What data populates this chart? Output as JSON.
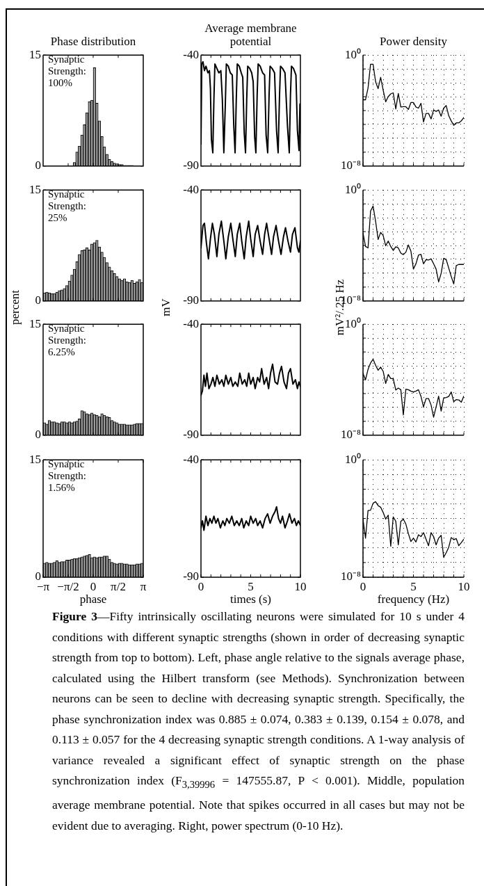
{
  "chart_data": [
    {
      "type": "histogram",
      "title": "Phase distribution",
      "annotations": [
        "Synaptic Strength: 100%"
      ],
      "bins": [
        -3.1416,
        -2.9845,
        -2.8274,
        -2.6704,
        -2.5133,
        -2.3562,
        -2.1991,
        -2.042,
        -1.885,
        -1.7279,
        -1.5708,
        -1.4137,
        -1.2566,
        -1.0996,
        -0.9425,
        -0.7854,
        -0.6283,
        -0.4712,
        -0.3142,
        -0.1571,
        0,
        0.1571,
        0.3142,
        0.4712,
        0.6283,
        0.7854,
        0.9425,
        1.0996,
        1.2566,
        1.4137,
        1.5708,
        1.7279,
        1.885,
        2.042,
        2.1991,
        2.3562,
        2.5133,
        2.6704,
        2.8274,
        2.9845,
        3.1416
      ],
      "values": [
        0,
        0,
        0,
        0,
        0,
        0,
        0,
        0,
        0,
        0,
        0,
        0,
        0.5,
        1.9,
        2.7,
        4.2,
        5.6,
        7.2,
        8.7,
        8.9,
        13.3,
        8.5,
        6.1,
        4.0,
        2.6,
        1.6,
        0.9,
        0.6,
        0.4,
        0.3,
        0.2,
        0.2,
        0.1,
        0.1,
        0.1,
        0.1,
        0,
        0,
        0,
        0
      ],
      "color": "#a0a0a0",
      "xlim": [
        -3.1416,
        3.1416
      ],
      "xticks": [
        {
          "value": -1.5708,
          "label": null
        },
        {
          "value": 0,
          "label": null
        },
        {
          "value": 1.5708,
          "label": null
        }
      ],
      "ylim": [
        0,
        15
      ],
      "yticks": [
        0,
        15
      ],
      "tick_labels": "y"
    },
    {
      "type": "line",
      "title": "Average membrane potential",
      "x": [
        0,
        0.08,
        0.2,
        0.35,
        0.5,
        0.7,
        0.85,
        0.95,
        1.05,
        1.19,
        1.3,
        1.4,
        1.6,
        1.8,
        2.0,
        2.15,
        2.3,
        2.45,
        2.55,
        2.75,
        2.95,
        3.15,
        3.3,
        3.43,
        3.55,
        3.65,
        3.85,
        4.05,
        4.2,
        4.35,
        4.48,
        4.6,
        4.7,
        4.9,
        5.1,
        5.25,
        5.4,
        5.52,
        5.65,
        5.75,
        5.95,
        6.2,
        6.4,
        6.55,
        6.71,
        6.85,
        6.95,
        7.15,
        7.4,
        7.6,
        7.76,
        7.9,
        8.0,
        8.2,
        8.45,
        8.7,
        8.88,
        9.0,
        9.1,
        9.3,
        9.55,
        9.7,
        9.86,
        9.95,
        10
      ],
      "values": [
        -80,
        -44,
        -43,
        -47,
        -45,
        -48,
        -47,
        -55,
        -78,
        -84,
        -60,
        -44,
        -46,
        -48,
        -47,
        -60,
        -84,
        -62,
        -44,
        -45,
        -48,
        -49,
        -72,
        -84,
        -60,
        -44,
        -45,
        -48,
        -50,
        -75,
        -84,
        -60,
        -45,
        -46,
        -48,
        -52,
        -77,
        -84,
        -58,
        -44,
        -45,
        -48,
        -49,
        -76,
        -84,
        -58,
        -45,
        -46,
        -48,
        -74,
        -84,
        -58,
        -45,
        -46,
        -48,
        -72,
        -84,
        -58,
        -45,
        -46,
        -49,
        -74,
        -83,
        -62,
        -75
      ],
      "color": "#000000",
      "xlim": [
        0,
        10
      ],
      "xticks": [
        {
          "value": 1,
          "label": null
        },
        {
          "value": 2,
          "label": null
        },
        {
          "value": 3,
          "label": null
        },
        {
          "value": 4,
          "label": null
        },
        {
          "value": 5,
          "label": null
        },
        {
          "value": 6,
          "label": null
        },
        {
          "value": 7,
          "label": null
        },
        {
          "value": 8,
          "label": null
        },
        {
          "value": 9,
          "label": null
        }
      ],
      "ylim": [
        -90,
        -40
      ],
      "yticks": [
        -90,
        -40
      ],
      "tick_labels": "y"
    },
    {
      "type": "line",
      "title": "Power density",
      "x": [
        0,
        0.25,
        0.5,
        0.75,
        1,
        1.25,
        1.5,
        1.75,
        2,
        2.25,
        2.5,
        2.75,
        3,
        3.25,
        3.5,
        3.75,
        4,
        4.25,
        4.5,
        4.75,
        5,
        5.25,
        5.5,
        5.75,
        6,
        6.25,
        6.5,
        6.75,
        7,
        7.25,
        7.5,
        7.75,
        8,
        8.25,
        8.5,
        8.75,
        9,
        9.25,
        9.5,
        9.75,
        10
      ],
      "values": [
        0.0006,
        0.0006,
        0.0042,
        0.22,
        0.22,
        0.012,
        0.0038,
        0.025,
        0.003,
        0.00043,
        0.001,
        0.0016,
        0.0019,
        0.00013,
        0.0017,
        0.00018,
        0.00019,
        0.00019,
        0.00012,
        0.00038,
        0.00038,
        0.00018,
        0.00015,
        0.00033,
        1.5e-05,
        6.2e-05,
        6.2e-05,
        2.5e-05,
        0.00011,
        8.7e-05,
        0.00011,
        3.9e-05,
        0.00015,
        0.00023,
        4.3e-05,
        1.8e-05,
        8.7e-06,
        1.3e-05,
        1.3e-05,
        1.8e-05,
        3.2e-05
      ],
      "color": "#000000",
      "xlim": [
        0,
        10
      ],
      "xticks": [
        {
          "value": 0,
          "label": null
        },
        {
          "value": 1,
          "label": null
        },
        {
          "value": 2,
          "label": null
        },
        {
          "value": 3,
          "label": null
        },
        {
          "value": 4,
          "label": null
        },
        {
          "value": 5,
          "label": null
        },
        {
          "value": 6,
          "label": null
        },
        {
          "value": 7,
          "label": null
        },
        {
          "value": 8,
          "label": null
        },
        {
          "value": 9,
          "label": null
        },
        {
          "value": 10,
          "label": null
        }
      ],
      "ylim": [
        1e-08,
        1
      ],
      "yticks": [
        {
          "value": 1e-08,
          "label": "10⁻⁸"
        },
        {
          "value": 1e-07,
          "label": null
        },
        {
          "value": 1e-06,
          "label": null
        },
        {
          "value": 1e-05,
          "label": null
        },
        {
          "value": 0.0001,
          "label": null
        },
        {
          "value": 0.001,
          "label": null
        },
        {
          "value": 0.01,
          "label": null
        },
        {
          "value": 0.1,
          "label": null
        },
        {
          "value": 1,
          "label": "10⁰"
        }
      ],
      "log": true,
      "grid": true,
      "tick_labels": "y"
    },
    {
      "type": "histogram",
      "ylabel": "percent",
      "annotations": [
        "Synaptic Strength: 25%"
      ],
      "bins": [
        -3.1416,
        -2.9845,
        -2.8274,
        -2.6704,
        -2.5133,
        -2.3562,
        -2.1991,
        -2.042,
        -1.885,
        -1.7279,
        -1.5708,
        -1.4137,
        -1.2566,
        -1.0996,
        -0.9425,
        -0.7854,
        -0.6283,
        -0.4712,
        -0.3142,
        -0.1571,
        0,
        0.1571,
        0.3142,
        0.4712,
        0.6283,
        0.7854,
        0.9425,
        1.0996,
        1.2566,
        1.4137,
        1.5708,
        1.7279,
        1.885,
        2.042,
        2.1991,
        2.3562,
        2.5133,
        2.6704,
        2.8274,
        2.9845,
        3.1416
      ],
      "values": [
        1.1,
        1.2,
        1.1,
        1.0,
        1.0,
        1.2,
        1.4,
        1.5,
        1.7,
        2.1,
        2.7,
        3.5,
        4.3,
        5.3,
        6.3,
        6.8,
        6.9,
        7.2,
        6.9,
        7.7,
        7.9,
        8.2,
        7.3,
        6.6,
        5.9,
        5.2,
        4.6,
        4.1,
        3.7,
        3.3,
        3.0,
        2.8,
        3.0,
        2.6,
        2.5,
        2.8,
        2.4,
        2.6,
        2.9,
        2.5
      ],
      "color": "#a0a0a0",
      "xlim": [
        -3.1416,
        3.1416
      ],
      "xticks": [
        {
          "value": -1.5708,
          "label": null
        },
        {
          "value": 0,
          "label": null
        },
        {
          "value": 1.5708,
          "label": null
        }
      ],
      "ylim": [
        0,
        15
      ],
      "yticks": [
        0,
        15
      ],
      "tick_labels": "y"
    },
    {
      "type": "line",
      "ylabel": "mV",
      "x": [
        0,
        0.2,
        0.35,
        0.55,
        0.75,
        0.95,
        1.15,
        1.35,
        1.6,
        1.8,
        2.05,
        2.3,
        2.5,
        2.75,
        3.0,
        3.2,
        3.45,
        3.65,
        3.9,
        4.1,
        4.35,
        4.55,
        4.8,
        5.0,
        5.25,
        5.45,
        5.7,
        5.95,
        6.2,
        6.4,
        6.6,
        6.85,
        7.1,
        7.3,
        7.55,
        7.8,
        8.05,
        8.3,
        8.5,
        8.75,
        9.0,
        9.2,
        9.45,
        9.7,
        9.85,
        10
      ],
      "values": [
        -66,
        -56,
        -55,
        -64,
        -71,
        -62,
        -55,
        -60,
        -70,
        -60,
        -54,
        -63,
        -71,
        -61,
        -55,
        -62,
        -70,
        -60,
        -55,
        -63,
        -71,
        -61,
        -54,
        -62,
        -70,
        -60,
        -56,
        -63,
        -69,
        -60,
        -55,
        -62,
        -69,
        -61,
        -56,
        -63,
        -69,
        -61,
        -57,
        -63,
        -68,
        -60,
        -57,
        -66,
        -68,
        -63
      ],
      "color": "#000000",
      "xlim": [
        0,
        10
      ],
      "xticks": [
        {
          "value": 1,
          "label": null
        },
        {
          "value": 2,
          "label": null
        },
        {
          "value": 3,
          "label": null
        },
        {
          "value": 4,
          "label": null
        },
        {
          "value": 5,
          "label": null
        },
        {
          "value": 6,
          "label": null
        },
        {
          "value": 7,
          "label": null
        },
        {
          "value": 8,
          "label": null
        },
        {
          "value": 9,
          "label": null
        }
      ],
      "ylim": [
        -90,
        -40
      ],
      "yticks": [
        -90,
        -40
      ],
      "tick_labels": "y"
    },
    {
      "type": "line",
      "ylabel": "mV²/.25 Hz",
      "x": [
        0,
        0.25,
        0.5,
        0.75,
        1,
        1.25,
        1.5,
        1.75,
        2,
        2.25,
        2.5,
        2.75,
        3,
        3.25,
        3.5,
        3.75,
        4,
        4.25,
        4.5,
        4.75,
        5,
        5.25,
        5.5,
        5.75,
        6,
        6.25,
        6.5,
        6.75,
        7,
        7.25,
        7.5,
        7.75,
        8,
        8.25,
        8.5,
        8.75,
        9,
        9.25,
        9.5,
        9.75,
        10
      ],
      "values": [
        0.00079,
        8.5e-05,
        6.7e-05,
        0.03,
        0.069,
        0.0055,
        0.00027,
        0.00088,
        0.00052,
        9.5e-05,
        0.00021,
        8.5e-05,
        4.4e-05,
        8e-05,
        6.7e-05,
        2.8e-05,
        2.2e-05,
        3.3e-05,
        0.00011,
        4e-05,
        2e-06,
        4.8e-06,
        2e-05,
        2.3e-05,
        4.8e-06,
        9.6e-06,
        8.9e-06,
        1.1e-05,
        4.8e-06,
        2e-06,
        2.4e-07,
        9.8e-07,
        1.2e-05,
        9.6e-06,
        2.4e-06,
        5.8e-07,
        1.7e-07,
        3.6e-06,
        4.3e-06,
        4.3e-06,
        4.3e-06
      ],
      "color": "#000000",
      "xlim": [
        0,
        10
      ],
      "xticks": [
        {
          "value": 0,
          "label": null
        },
        {
          "value": 1,
          "label": null
        },
        {
          "value": 2,
          "label": null
        },
        {
          "value": 3,
          "label": null
        },
        {
          "value": 4,
          "label": null
        },
        {
          "value": 5,
          "label": null
        },
        {
          "value": 6,
          "label": null
        },
        {
          "value": 7,
          "label": null
        },
        {
          "value": 8,
          "label": null
        },
        {
          "value": 9,
          "label": null
        },
        {
          "value": 10,
          "label": null
        }
      ],
      "ylim": [
        1e-08,
        1
      ],
      "yticks": [
        {
          "value": 1e-08,
          "label": "10⁻⁸"
        },
        {
          "value": 1e-07,
          "label": null
        },
        {
          "value": 1e-06,
          "label": null
        },
        {
          "value": 1e-05,
          "label": null
        },
        {
          "value": 0.0001,
          "label": null
        },
        {
          "value": 0.001,
          "label": null
        },
        {
          "value": 0.01,
          "label": null
        },
        {
          "value": 0.1,
          "label": null
        },
        {
          "value": 1,
          "label": "10⁰"
        }
      ],
      "log": true,
      "grid": true,
      "tick_labels": "y"
    },
    {
      "type": "histogram",
      "annotations": [
        "Synaptic Strength: 6.25%"
      ],
      "bins": [
        -3.1416,
        -2.9845,
        -2.8274,
        -2.6704,
        -2.5133,
        -2.3562,
        -2.1991,
        -2.042,
        -1.885,
        -1.7279,
        -1.5708,
        -1.4137,
        -1.2566,
        -1.0996,
        -0.9425,
        -0.7854,
        -0.6283,
        -0.4712,
        -0.3142,
        -0.1571,
        0,
        0.1571,
        0.3142,
        0.4712,
        0.6283,
        0.7854,
        0.9425,
        1.0996,
        1.2566,
        1.4137,
        1.5708,
        1.7279,
        1.885,
        2.042,
        2.1991,
        2.3562,
        2.5133,
        2.6704,
        2.8274,
        2.9845,
        3.1416
      ],
      "values": [
        1.7,
        1.5,
        2.0,
        1.8,
        1.8,
        1.7,
        1.6,
        1.8,
        1.8,
        1.7,
        1.8,
        1.7,
        1.8,
        1.9,
        2.2,
        3.3,
        3.2,
        2.9,
        2.8,
        3.0,
        2.8,
        2.7,
        2.5,
        2.9,
        2.7,
        2.5,
        2.4,
        2.0,
        1.8,
        1.7,
        1.5,
        1.5,
        1.5,
        1.4,
        1.4,
        1.4,
        1.5,
        1.6,
        1.6,
        1.6
      ],
      "color": "#a0a0a0",
      "xlim": [
        -3.1416,
        3.1416
      ],
      "xticks": [
        {
          "value": -1.5708,
          "label": null
        },
        {
          "value": 0,
          "label": null
        },
        {
          "value": 1.5708,
          "label": null
        }
      ],
      "ylim": [
        0,
        15
      ],
      "yticks": [
        0,
        15
      ],
      "tick_labels": "y"
    },
    {
      "type": "line",
      "x": [
        0,
        0.15,
        0.3,
        0.45,
        0.6,
        0.8,
        1.0,
        1.2,
        1.4,
        1.6,
        1.85,
        2.1,
        2.3,
        2.5,
        2.75,
        3.0,
        3.2,
        3.45,
        3.7,
        3.9,
        4.15,
        4.4,
        4.6,
        4.8,
        5.0,
        5.25,
        5.45,
        5.7,
        5.9,
        6.1,
        6.35,
        6.6,
        6.8,
        7.0,
        7.2,
        7.45,
        7.7,
        7.9,
        8.1,
        8.35,
        8.6,
        8.8,
        9.0,
        9.25,
        9.5,
        9.7,
        9.85,
        10
      ],
      "values": [
        -72,
        -70,
        -63,
        -68,
        -62,
        -69,
        -67,
        -64,
        -68,
        -63,
        -67,
        -65,
        -68,
        -63,
        -67,
        -64,
        -68,
        -66,
        -68,
        -62,
        -67,
        -65,
        -68,
        -62,
        -67,
        -64,
        -69,
        -64,
        -66,
        -60,
        -67,
        -64,
        -69,
        -62,
        -58,
        -66,
        -67,
        -62,
        -59,
        -66,
        -69,
        -62,
        -60,
        -67,
        -65,
        -69,
        -66,
        -68
      ],
      "color": "#000000",
      "xlim": [
        0,
        10
      ],
      "xticks": [
        {
          "value": 1,
          "label": null
        },
        {
          "value": 2,
          "label": null
        },
        {
          "value": 3,
          "label": null
        },
        {
          "value": 4,
          "label": null
        },
        {
          "value": 5,
          "label": null
        },
        {
          "value": 6,
          "label": null
        },
        {
          "value": 7,
          "label": null
        },
        {
          "value": 8,
          "label": null
        },
        {
          "value": 9,
          "label": null
        }
      ],
      "ylim": [
        -90,
        -40
      ],
      "yticks": [
        -90,
        -40
      ],
      "tick_labels": "y"
    },
    {
      "type": "line",
      "x": [
        0,
        0.25,
        0.5,
        0.75,
        1,
        1.25,
        1.5,
        1.75,
        2,
        2.25,
        2.5,
        2.75,
        3,
        3.25,
        3.5,
        3.75,
        4,
        4.25,
        4.5,
        4.75,
        5,
        5.25,
        5.5,
        5.75,
        6,
        6.25,
        6.5,
        6.75,
        7,
        7.25,
        7.5,
        7.75,
        8,
        8.25,
        8.5,
        8.75,
        9,
        9.25,
        9.5,
        9.75,
        10
      ],
      "values": [
        0.00028,
        0.0001,
        0.00056,
        0.0016,
        0.003,
        0.0011,
        0.00048,
        0.00081,
        0.0004,
        5.4e-05,
        0.00024,
        0.00012,
        0.00012,
        1.8e-05,
        2.5e-05,
        1.9e-05,
        2.9e-07,
        2.1e-05,
        1.9e-05,
        1.5e-05,
        1.3e-05,
        1.5e-05,
        1.9e-05,
        6.2e-06,
        1.1e-06,
        4.4e-06,
        4.4e-06,
        1.5e-06,
        2e-07,
        1.1e-06,
        6.6e-06,
        5.5e-07,
        4.7e-06,
        5.2e-06,
        6.2e-06,
        1.3e-05,
        2.6e-06,
        3.7e-06,
        3.5e-06,
        2.4e-06,
        6.6e-06
      ],
      "color": "#000000",
      "xlim": [
        0,
        10
      ],
      "xticks": [
        {
          "value": 0,
          "label": null
        },
        {
          "value": 1,
          "label": null
        },
        {
          "value": 2,
          "label": null
        },
        {
          "value": 3,
          "label": null
        },
        {
          "value": 4,
          "label": null
        },
        {
          "value": 5,
          "label": null
        },
        {
          "value": 6,
          "label": null
        },
        {
          "value": 7,
          "label": null
        },
        {
          "value": 8,
          "label": null
        },
        {
          "value": 9,
          "label": null
        },
        {
          "value": 10,
          "label": null
        }
      ],
      "ylim": [
        1e-08,
        1
      ],
      "yticks": [
        {
          "value": 1e-08,
          "label": "10⁻⁸"
        },
        {
          "value": 1e-07,
          "label": null
        },
        {
          "value": 1e-06,
          "label": null
        },
        {
          "value": 1e-05,
          "label": null
        },
        {
          "value": 0.0001,
          "label": null
        },
        {
          "value": 0.001,
          "label": null
        },
        {
          "value": 0.01,
          "label": null
        },
        {
          "value": 0.1,
          "label": null
        },
        {
          "value": 1,
          "label": "10⁰"
        }
      ],
      "log": true,
      "grid": true,
      "tick_labels": "y"
    },
    {
      "type": "histogram",
      "xlabel": "phase",
      "annotations": [
        "Synaptic Strength: 1.56%"
      ],
      "bins": [
        -3.1416,
        -2.9845,
        -2.8274,
        -2.6704,
        -2.5133,
        -2.3562,
        -2.1991,
        -2.042,
        -1.885,
        -1.7279,
        -1.5708,
        -1.4137,
        -1.2566,
        -1.0996,
        -0.9425,
        -0.7854,
        -0.6283,
        -0.4712,
        -0.3142,
        -0.1571,
        0,
        0.1571,
        0.3142,
        0.4712,
        0.6283,
        0.7854,
        0.9425,
        1.0996,
        1.2566,
        1.4137,
        1.5708,
        1.7279,
        1.885,
        2.042,
        2.1991,
        2.3562,
        2.5133,
        2.6704,
        2.8274,
        2.9845,
        3.1416
      ],
      "values": [
        1.8,
        1.9,
        1.8,
        1.8,
        1.9,
        2.1,
        1.9,
        2.0,
        2.0,
        2.2,
        2.2,
        2.3,
        2.4,
        2.4,
        2.5,
        2.6,
        2.7,
        2.8,
        2.9,
        2.5,
        2.6,
        2.5,
        2.6,
        2.6,
        2.7,
        2.7,
        2.3,
        1.9,
        1.8,
        1.7,
        1.8,
        1.8,
        1.7,
        1.7,
        1.6,
        1.6,
        1.6,
        1.7,
        1.7,
        1.8
      ],
      "color": "#a0a0a0",
      "xlim": [
        -3.1416,
        3.1416
      ],
      "xticks": [
        {
          "value": -3.1416,
          "label": "−π"
        },
        {
          "value": -1.5708,
          "label": "−π/2"
        },
        0,
        {
          "value": 1.5708,
          "label": "π/2"
        },
        {
          "value": 3.1416,
          "label": "π"
        }
      ],
      "ylim": [
        0,
        15
      ],
      "yticks": [
        0,
        15
      ]
    },
    {
      "type": "line",
      "xlabel": "times (s)",
      "x": [
        0,
        0.15,
        0.3,
        0.5,
        0.7,
        0.9,
        1.1,
        1.3,
        1.5,
        1.7,
        1.95,
        2.2,
        2.4,
        2.6,
        2.85,
        3.1,
        3.35,
        3.6,
        3.85,
        4.1,
        4.3,
        4.55,
        4.8,
        5.0,
        5.25,
        5.5,
        5.7,
        5.95,
        6.2,
        6.45,
        6.7,
        6.95,
        7.2,
        7.45,
        7.6,
        7.8,
        8.0,
        8.2,
        8.45,
        8.7,
        8.9,
        9.15,
        9.4,
        9.6,
        9.8,
        10
      ],
      "values": [
        -69,
        -66,
        -70,
        -64,
        -68,
        -65,
        -67,
        -64,
        -67,
        -65,
        -69,
        -66,
        -68,
        -65,
        -67,
        -64,
        -68,
        -66,
        -68,
        -65,
        -69,
        -66,
        -68,
        -64,
        -67,
        -65,
        -68,
        -66,
        -69,
        -65,
        -63,
        -67,
        -64,
        -62,
        -60,
        -65,
        -67,
        -64,
        -69,
        -66,
        -63,
        -67,
        -65,
        -68,
        -66,
        -68
      ],
      "color": "#000000",
      "xlim": [
        0,
        10
      ],
      "xticks": [
        0,
        {
          "value": 1,
          "label": null
        },
        {
          "value": 2,
          "label": null
        },
        {
          "value": 3,
          "label": null
        },
        {
          "value": 4,
          "label": null
        },
        5,
        {
          "value": 6,
          "label": null
        },
        {
          "value": 7,
          "label": null
        },
        {
          "value": 8,
          "label": null
        },
        {
          "value": 9,
          "label": null
        },
        10
      ],
      "ylim": [
        -90,
        -40
      ],
      "yticks": [
        -90,
        -40
      ]
    },
    {
      "type": "line",
      "xlabel": "frequency (Hz)",
      "x": [
        0,
        0.25,
        0.5,
        0.75,
        1,
        1.25,
        1.5,
        1.75,
        2,
        2.25,
        2.5,
        2.75,
        3,
        3.25,
        3.5,
        3.75,
        4,
        4.25,
        4.5,
        4.75,
        5,
        5.25,
        5.5,
        5.75,
        6,
        6.25,
        6.5,
        6.75,
        7,
        7.25,
        7.5,
        7.75,
        8,
        8.25,
        8.5,
        8.75,
        9,
        9.25,
        9.5,
        9.75,
        10
      ],
      "values": [
        9.1e-05,
        4.6e-06,
        0.00035,
        0.00037,
        0.0011,
        0.0014,
        0.00075,
        0.00059,
        0.00026,
        9.1e-05,
        0.00017,
        1.3e-06,
        0.00013,
        6.4e-05,
        1.6e-06,
        6.4e-05,
        9.1e-05,
        4.2e-05,
        9.3e-06,
        2.7e-06,
        4.6e-06,
        2.5e-06,
        7.8e-06,
        5.9e-06,
        1.1e-05,
        3.9e-06,
        1.4e-06,
        1.1e-05,
        5.9e-06,
        1.6e-06,
        4.6e-06,
        7.2e-06,
        2.3e-07,
        4.7e-07,
        1.1e-06,
        5.1e-06,
        3.6e-06,
        4.3e-06,
        1.4e-06,
        2.3e-06,
        3.9e-06
      ],
      "color": "#000000",
      "xlim": [
        0,
        10
      ],
      "xticks": [
        0,
        {
          "value": 1,
          "label": null
        },
        {
          "value": 2,
          "label": null
        },
        {
          "value": 3,
          "label": null
        },
        {
          "value": 4,
          "label": null
        },
        5,
        {
          "value": 6,
          "label": null
        },
        {
          "value": 7,
          "label": null
        },
        {
          "value": 8,
          "label": null
        },
        {
          "value": 9,
          "label": null
        },
        10
      ],
      "ylim": [
        1e-08,
        1
      ],
      "yticks": [
        {
          "value": 1e-08,
          "label": "10⁻⁸"
        },
        {
          "value": 1e-07,
          "label": null
        },
        {
          "value": 1e-06,
          "label": null
        },
        {
          "value": 1e-05,
          "label": null
        },
        {
          "value": 0.0001,
          "label": null
        },
        {
          "value": 0.001,
          "label": null
        },
        {
          "value": 0.01,
          "label": null
        },
        {
          "value": 0.1,
          "label": null
        },
        {
          "value": 1,
          "label": "10⁰"
        }
      ],
      "log": true,
      "grid": true
    },
    {
      "type": "other",
      "title": "Figure 3",
      "annotations": [
        "—Fifty intrinsically oscillating neurons were simulated for 10 s under 4 conditions with different synaptic strengths (shown in order of decreasing synaptic strength from top to bottom). Left, phase angle relative to the signals average phase, calculated using the Hilbert transform (see Methods). Synchronization between neurons can be seen to decline with decreasing synaptic strength. Specifically, the phase synchronization index was 0.885 ± 0.074, 0.383 ± 0.139, 0.154 ± 0.078, and 0.113 ± 0.057 for the 4 decreasing synaptic strength conditions. A 1-way analysis of variance revealed a significant effect of synaptic strength on the phase synchronization index (F$_{3,39996}$ = 147555.87, P < 0.001). Middle, population average membrane potential. Note that spikes occurred in all cases but may not be evident due to averaging. Right, power spectrum (0-10 Hz)."
      ]
    }
  ]
}
